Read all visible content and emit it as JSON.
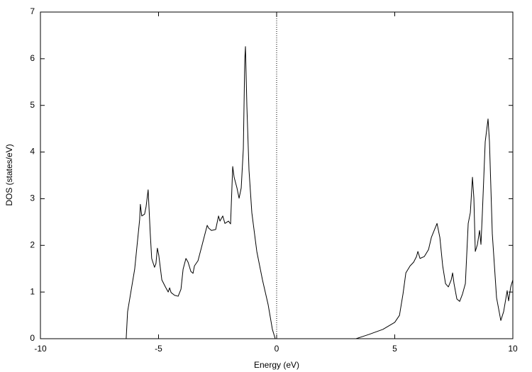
{
  "chart_data": {
    "type": "line",
    "xlabel": "Energy (eV)",
    "ylabel": "DOS (states/eV)",
    "xlim": [
      -10,
      10
    ],
    "ylim": [
      0,
      7
    ],
    "xticks": [
      -10,
      -5,
      0,
      5,
      10
    ],
    "yticks": [
      0,
      1,
      2,
      3,
      4,
      5,
      6,
      7
    ],
    "color": "#000000",
    "reference_line_x": 0,
    "x": [
      -10,
      -6.37,
      -6.31,
      -6.01,
      -5.8,
      -5.77,
      -5.71,
      -5.59,
      -5.53,
      -5.44,
      -5.35,
      -5.29,
      -5.17,
      -5.11,
      -5.05,
      -4.99,
      -4.86,
      -4.71,
      -4.59,
      -4.53,
      -4.47,
      -4.32,
      -4.17,
      -4.05,
      -3.96,
      -3.84,
      -3.75,
      -3.63,
      -3.54,
      -3.48,
      -3.33,
      -3.15,
      -2.94,
      -2.88,
      -2.76,
      -2.58,
      -2.46,
      -2.4,
      -2.28,
      -2.19,
      -2.04,
      -1.95,
      -1.86,
      -1.8,
      -1.68,
      -1.59,
      -1.5,
      -1.41,
      -1.35,
      -1.32,
      -1.26,
      -1.17,
      -1.05,
      -0.84,
      -0.6,
      -0.36,
      -0.18,
      -0.06,
      0,
      3.36,
      3.9,
      4.5,
      5.0,
      5.2,
      5.35,
      5.47,
      5.65,
      5.8,
      5.92,
      5.98,
      6.07,
      6.25,
      6.43,
      6.55,
      6.67,
      6.79,
      6.91,
      7.03,
      7.15,
      7.27,
      7.39,
      7.45,
      7.51,
      7.63,
      7.75,
      7.87,
      7.99,
      8.11,
      8.2,
      8.29,
      8.35,
      8.41,
      8.5,
      8.59,
      8.65,
      8.71,
      8.83,
      8.95,
      9.01,
      9.13,
      9.31,
      9.49,
      9.61,
      9.76,
      9.82,
      9.91,
      10
    ],
    "values": [
      0,
      0,
      0.58,
      1.49,
      2.55,
      2.88,
      2.63,
      2.67,
      2.82,
      3.19,
      2.25,
      1.72,
      1.53,
      1.61,
      1.94,
      1.79,
      1.26,
      1.11,
      1.0,
      1.09,
      0.99,
      0.93,
      0.91,
      1.06,
      1.49,
      1.72,
      1.64,
      1.44,
      1.4,
      1.56,
      1.67,
      2.02,
      2.43,
      2.37,
      2.32,
      2.34,
      2.63,
      2.52,
      2.63,
      2.47,
      2.52,
      2.46,
      3.69,
      3.46,
      3.23,
      3.01,
      3.23,
      4.07,
      5.97,
      6.26,
      4.98,
      3.61,
      2.7,
      1.87,
      1.26,
      0.73,
      0.2,
      0,
      0,
      0,
      0.09,
      0.2,
      0.35,
      0.5,
      0.96,
      1.41,
      1.56,
      1.64,
      1.76,
      1.87,
      1.72,
      1.76,
      1.91,
      2.17,
      2.32,
      2.47,
      2.17,
      1.56,
      1.18,
      1.11,
      1.26,
      1.41,
      1.18,
      0.85,
      0.8,
      0.96,
      1.18,
      2.47,
      2.7,
      3.46,
      3.01,
      1.87,
      2.02,
      2.32,
      2.02,
      2.7,
      4.22,
      4.71,
      4.22,
      2.25,
      0.88,
      0.39,
      0.58,
      1.03,
      0.81,
      1.11,
      1.26
    ]
  }
}
